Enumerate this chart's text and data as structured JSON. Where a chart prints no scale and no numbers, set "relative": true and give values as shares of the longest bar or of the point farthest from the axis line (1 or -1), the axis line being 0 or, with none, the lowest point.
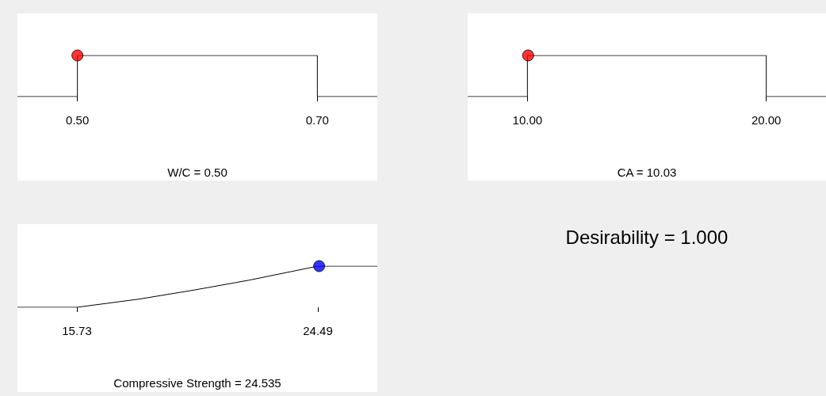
{
  "chart_data": [
    {
      "type": "line",
      "xlabel": "W/C = 0.50",
      "relative": true,
      "tick_labels": "x",
      "xlim": [
        0.45,
        0.75
      ],
      "xticks": [
        {
          "value": 0.5,
          "label": "0.50"
        },
        {
          "value": 0.7,
          "label": "0.70"
        }
      ],
      "series": [
        {
          "color": "#000000",
          "x": [
            0.45,
            0.5,
            0.5,
            0.7,
            0.7,
            0.75
          ],
          "values": [
            0,
            0,
            1,
            1,
            0,
            0
          ]
        },
        {
          "type": "scatter",
          "color": "#ff0000",
          "x": [
            0.5
          ],
          "values": [
            1
          ]
        }
      ]
    },
    {
      "type": "line",
      "xlabel": "CA = 10.03",
      "relative": true,
      "tick_labels": "x",
      "xlim": [
        7.5,
        22.5
      ],
      "xticks": [
        {
          "value": 10,
          "label": "10.00"
        },
        {
          "value": 20,
          "label": "20.00"
        }
      ],
      "series": [
        {
          "color": "#000000",
          "x": [
            7.5,
            10,
            10,
            20,
            20,
            22.5
          ],
          "values": [
            0,
            0,
            1,
            1,
            0,
            0
          ]
        },
        {
          "type": "scatter",
          "color": "#ff0000",
          "x": [
            10.03
          ],
          "values": [
            1
          ]
        }
      ]
    },
    {
      "type": "line",
      "xlabel": "Compressive Strength = 24.535",
      "relative": true,
      "tick_labels": "x",
      "xlim": [
        13.57,
        26.65
      ],
      "xticks": [
        {
          "value": 15.73,
          "label": "15.73"
        },
        {
          "value": 24.49,
          "label": "24.49"
        }
      ],
      "series": [
        {
          "color": "#000000",
          "x": [
            13.57,
            15.73,
            18,
            20,
            22,
            24.49,
            26.65
          ],
          "values": [
            0,
            0,
            0.2,
            0.42,
            0.66,
            1,
            1
          ]
        },
        {
          "type": "scatter",
          "color": "#0000ff",
          "x": [
            24.535
          ],
          "values": [
            1
          ]
        }
      ]
    },
    {
      "type": "other",
      "title": "Desirability = 1.000"
    }
  ]
}
